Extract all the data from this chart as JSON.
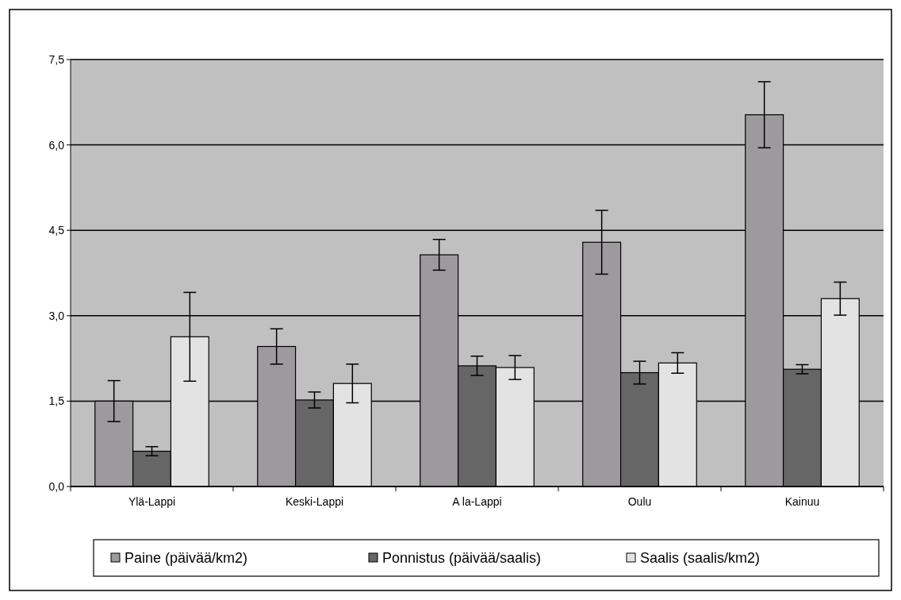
{
  "chart_data": {
    "type": "bar",
    "categories": [
      "Ylä-Lappi",
      "Keski-Lappi",
      "A la-Lappi",
      "Oulu",
      "Kainuu"
    ],
    "series": [
      {
        "name": "Paine (päivää/km2)",
        "color": "#9c9a9c",
        "values": [
          1.5,
          2.46,
          4.07,
          4.29,
          6.53
        ],
        "errors": [
          0.36,
          0.31,
          0.27,
          0.56,
          0.58
        ]
      },
      {
        "name": "Ponnistus (päivää/saalis)",
        "color": "#666666",
        "values": [
          0.62,
          1.52,
          2.12,
          2.0,
          2.06
        ],
        "errors": [
          0.08,
          0.14,
          0.17,
          0.2,
          0.08
        ]
      },
      {
        "name": "Saalis (saalis/km2)",
        "color": "#e3e3e3",
        "values": [
          2.63,
          1.81,
          2.09,
          2.17,
          3.3
        ],
        "errors": [
          0.78,
          0.34,
          0.21,
          0.18,
          0.29
        ]
      }
    ],
    "ylim": [
      0,
      7.5
    ],
    "yticks": [
      {
        "value": 0,
        "label": "0,0"
      },
      {
        "value": 1.5,
        "label": "1,5"
      },
      {
        "value": 3,
        "label": "3,0"
      },
      {
        "value": 4.5,
        "label": "4,5"
      },
      {
        "value": 6,
        "label": "6,0"
      },
      {
        "value": 7.5,
        "label": "7,5"
      }
    ],
    "grid": "y",
    "legend": "bottom"
  }
}
